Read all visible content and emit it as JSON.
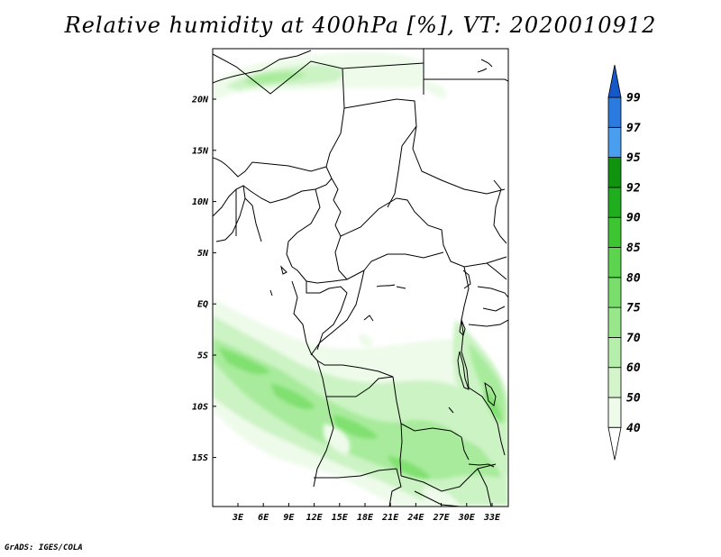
{
  "title": "Relative humidity at 400hPa [%], VT: 2020010912",
  "credit": "GrADS: IGES/COLA",
  "map": {
    "lat_ticks": [
      "20N",
      "15N",
      "10N",
      "5N",
      "EQ",
      "5S",
      "10S",
      "15S"
    ],
    "lon_ticks": [
      "3E",
      "6E",
      "9E",
      "12E",
      "15E",
      "18E",
      "21E",
      "24E",
      "27E",
      "30E",
      "33E"
    ],
    "fill_colors": [
      "#eefbea",
      "#ccf3c4",
      "#a8eb9c",
      "#80e070",
      "#5ad24c"
    ]
  },
  "colorbar": {
    "levels": [
      "40",
      "50",
      "60",
      "70",
      "75",
      "80",
      "85",
      "90",
      "92",
      "95",
      "97",
      "99"
    ],
    "colors": [
      "#ffffff",
      "#eefbea",
      "#d4f5cc",
      "#b6efab",
      "#98e78b",
      "#7ade6c",
      "#5cd44e",
      "#3ec632",
      "#1fae1d",
      "#109410",
      "#4a9ef0",
      "#2a7ae0",
      "#1658c8"
    ]
  }
}
